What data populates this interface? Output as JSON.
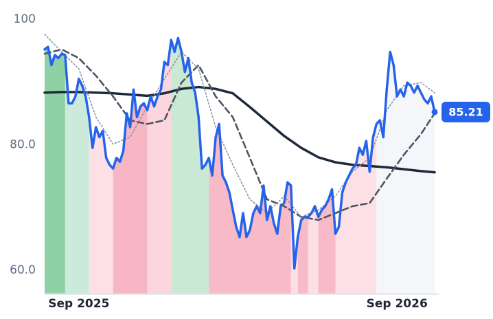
{
  "chart_data": {
    "type": "line",
    "xlim": [
      0,
      114
    ],
    "ylim": [
      56.3,
      100
    ],
    "yticks": [
      100,
      {
        "value": 80,
        "label": "80.0"
      },
      {
        "value": 60,
        "label": "60.0"
      }
    ],
    "xticks": [
      {
        "value": 10,
        "label": "Sep 2025"
      },
      {
        "value": 103,
        "label": "Sep 2026"
      }
    ],
    "bands": [
      {
        "from": 0,
        "to": 6,
        "color": "#8fd1a4"
      },
      {
        "from": 6,
        "to": 13,
        "color": "#cbeada"
      },
      {
        "from": 13,
        "to": 20,
        "color": "#fde0e6"
      },
      {
        "from": 20,
        "to": 30,
        "color": "#f7b6c3"
      },
      {
        "from": 30,
        "to": 37,
        "color": "#fcd6de"
      },
      {
        "from": 37,
        "to": 48,
        "color": "#c9e9d5"
      },
      {
        "from": 48,
        "to": 72,
        "color": "#f8bac6"
      },
      {
        "from": 72,
        "to": 74,
        "color": "#fde0e6"
      },
      {
        "from": 74,
        "to": 77,
        "color": "#f8bac6"
      },
      {
        "from": 77,
        "to": 80,
        "color": "#fde0e6"
      },
      {
        "from": 80,
        "to": 85,
        "color": "#f8bac6"
      },
      {
        "from": 85,
        "to": 97,
        "color": "#fde0e6"
      },
      {
        "from": 97,
        "to": 114,
        "color": "#f5f6f9"
      }
    ],
    "series": [
      {
        "color": "#2563eb",
        "style": "solid",
        "values": [
          95.2,
          95.6,
          92.7,
          94.3,
          93.8,
          94.5,
          94.3,
          86.6,
          86.6,
          87.7,
          90.5,
          89.4,
          87.7,
          84.4,
          79.5,
          82.8,
          81.2,
          82.2,
          77.9,
          76.8,
          76.2,
          77.9,
          77.3,
          79.0,
          85.0,
          82.8,
          88.8,
          84.4,
          86.1,
          86.6,
          85.5,
          87.7,
          86.1,
          87.7,
          88.8,
          93.2,
          92.7,
          96.7,
          94.8,
          97.0,
          94.8,
          91.6,
          93.8,
          89.9,
          88.3,
          84.4,
          76.2,
          76.8,
          77.9,
          75.1,
          81.2,
          83.3,
          75.1,
          74.0,
          72.4,
          69.6,
          66.9,
          65.3,
          69.1,
          65.3,
          66.4,
          69.1,
          70.2,
          69.1,
          73.5,
          68.0,
          70.2,
          67.5,
          65.8,
          70.2,
          70.7,
          74.0,
          73.5,
          60.3,
          65.3,
          68.0,
          68.5,
          68.5,
          69.1,
          70.2,
          68.5,
          69.6,
          70.2,
          71.3,
          72.9,
          65.8,
          66.9,
          72.4,
          74.0,
          75.1,
          76.2,
          76.8,
          79.5,
          78.4,
          80.6,
          75.7,
          81.2,
          83.3,
          83.9,
          81.2,
          88.8,
          94.8,
          92.7,
          87.7,
          88.8,
          87.7,
          89.9,
          89.4,
          88.3,
          89.4,
          88.3,
          87.2,
          86.6,
          87.7,
          85.21
        ]
      },
      {
        "color": "#8a94a6",
        "style": "dotted",
        "x": [
          0,
          5,
          10,
          15,
          20,
          25,
          30,
          35,
          40,
          45,
          50,
          55,
          60,
          65,
          70,
          75,
          80,
          85,
          90,
          95,
          100,
          105,
          110,
          114
        ],
        "values": [
          97.6,
          94.8,
          92.1,
          84.4,
          80.1,
          81.2,
          86.1,
          90.5,
          94.8,
          92.1,
          82.8,
          76.8,
          71.3,
          69.1,
          71.8,
          68.5,
          69.6,
          71.8,
          75.7,
          77.9,
          85.5,
          89.4,
          89.9,
          88.3
        ]
      },
      {
        "color": "#4b5563",
        "style": "dashed",
        "x": [
          0,
          5,
          10,
          15,
          20,
          25,
          30,
          35,
          40,
          45,
          50,
          55,
          60,
          65,
          70,
          75,
          80,
          85,
          90,
          95,
          100,
          105,
          110,
          114
        ],
        "values": [
          94.5,
          95.2,
          93.8,
          91.0,
          87.7,
          83.9,
          83.3,
          83.9,
          89.9,
          92.7,
          87.7,
          84.4,
          77.9,
          71.3,
          70.2,
          68.5,
          68.0,
          69.1,
          70.2,
          70.7,
          74.6,
          78.4,
          81.7,
          85.0
        ]
      },
      {
        "color": "#1e293b",
        "style": "solid",
        "x": [
          0,
          5,
          10,
          15,
          20,
          25,
          30,
          35,
          40,
          45,
          50,
          55,
          60,
          65,
          70,
          75,
          80,
          85,
          90,
          95,
          100,
          105,
          110,
          114
        ],
        "values": [
          88.3,
          88.4,
          88.4,
          88.3,
          88.2,
          88.0,
          87.8,
          88.2,
          88.9,
          89.2,
          88.9,
          88.2,
          86.0,
          83.7,
          81.4,
          79.5,
          78.0,
          77.2,
          76.8,
          76.6,
          76.4,
          76.1,
          75.8,
          75.6
        ]
      }
    ]
  }
}
